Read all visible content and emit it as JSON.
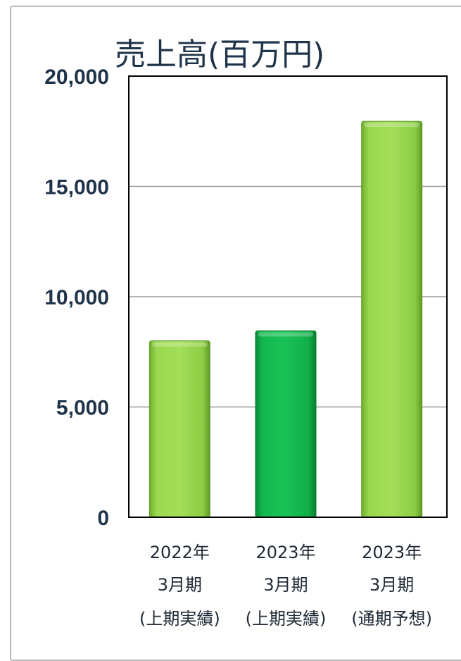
{
  "chart_data": {
    "type": "bar",
    "title": "売上高(百万円)",
    "xlabel": "",
    "ylabel": "",
    "ylim": [
      0,
      20000
    ],
    "y_ticks": [
      "0",
      "5,000",
      "10,000",
      "15,000",
      "20,000"
    ],
    "y_tick_values": [
      0,
      5000,
      10000,
      15000,
      20000
    ],
    "grid": true,
    "categories": [
      [
        "2022年",
        "3月期",
        "(上期実績)"
      ],
      [
        "2023年",
        "3月期",
        "(上期実績)"
      ],
      [
        "2023年",
        "3月期",
        "(通期予想)"
      ]
    ],
    "values": [
      8000,
      8450,
      17950
    ],
    "colors": [
      "#8ed048",
      "#16b24e",
      "#8ed048"
    ]
  }
}
